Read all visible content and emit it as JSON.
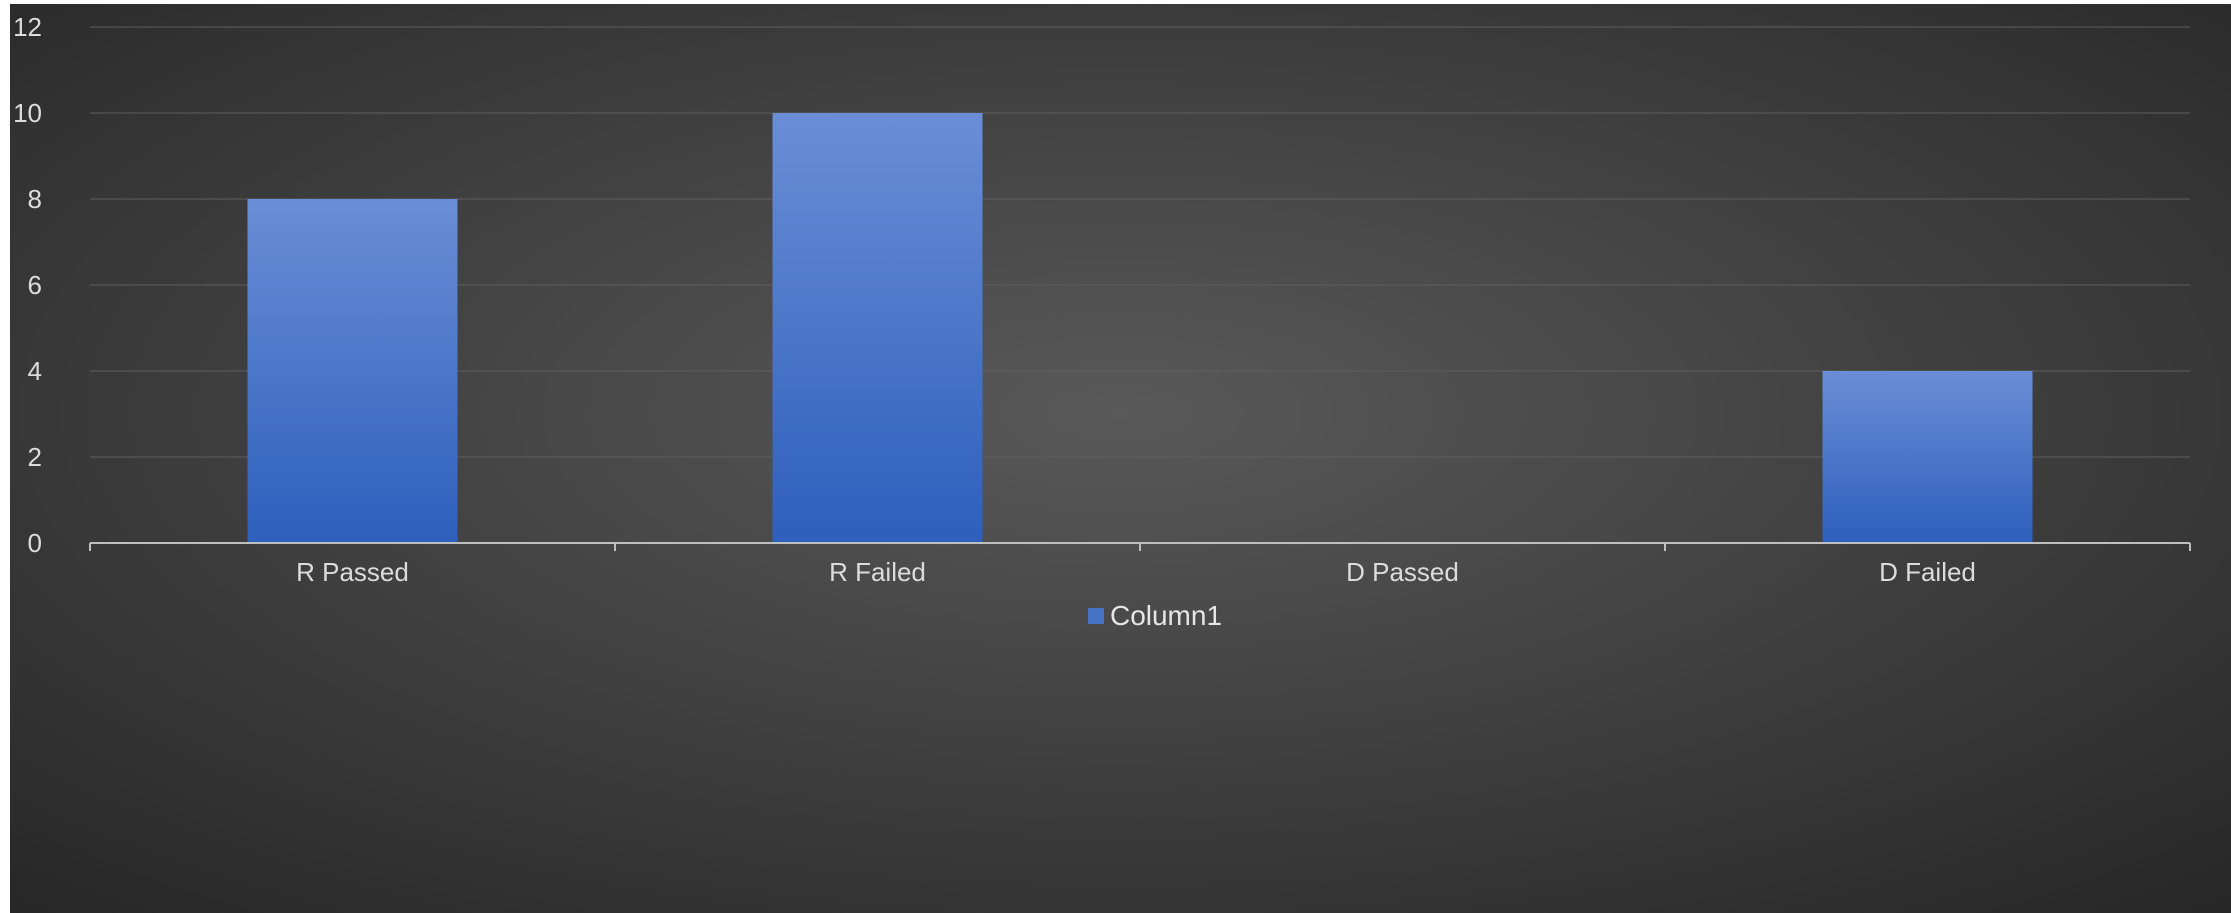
{
  "chart_data": {
    "type": "bar",
    "title": "",
    "xlabel": "",
    "ylabel": "",
    "categories": [
      "R Passed",
      "R Failed",
      "D Passed",
      "D Failed"
    ],
    "series": [
      {
        "name": "Column1",
        "values": [
          8,
          10,
          0,
          4
        ],
        "color": "#4472c4"
      }
    ],
    "ylim": [
      0,
      12
    ],
    "yticks": [
      0,
      2,
      4,
      6,
      8,
      10,
      12
    ],
    "grid": true,
    "legend": "bottom-center",
    "colors": {
      "background_center": "#595959",
      "background_edge": "#262626",
      "gridline": "#5e5e5e",
      "axis": "#bfbfbf",
      "bar_top": "#6a8ed6",
      "bar_bottom": "#2d5fbc"
    }
  }
}
